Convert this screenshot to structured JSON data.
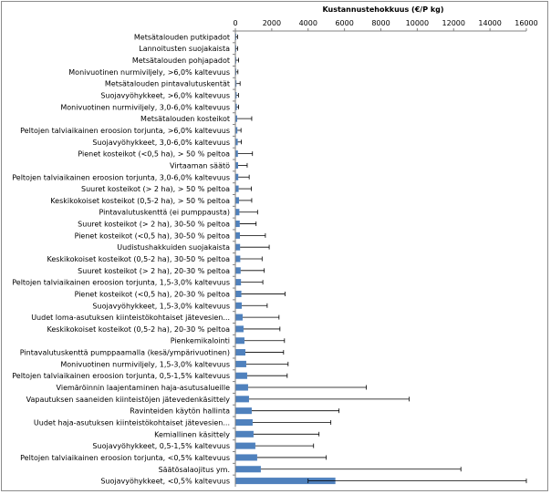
{
  "chart_data": {
    "type": "bar",
    "orientation": "horizontal",
    "title": "",
    "xlabel": "Kustannustehokkuus (€/P kg)",
    "ylabel": "",
    "xlim": [
      0,
      16000
    ],
    "xticks": [
      0,
      2000,
      4000,
      6000,
      8000,
      10000,
      12000,
      14000,
      16000
    ],
    "xtick_labels": [
      "0",
      "2000",
      "4000",
      "6000",
      "8000",
      "10000",
      "12000",
      "14000",
      "16000"
    ],
    "x_axis_position": "top",
    "grid": false,
    "legend": "none",
    "bar_color": "#4f81bd",
    "categories": [
      "Metsätalouden putkipadot",
      "Lannoitusten suojakaista",
      "Metsätalouden pohjapadot",
      "Monivuotinen nurmiviljely, >6,0% kaltevuus",
      "Metsätalouden pintavalutuskentät",
      "Suojavyöhykkeet, >6,0% kaltevuus",
      "Monivuotinen nurmiviljely, 3,0-6,0% kaltevuus",
      "Metsätalouden kosteikot",
      "Peltojen talviaikainen eroosion torjunta, >6,0% kaltevuus",
      "Suojavyöhykkeet, 3,0-6,0% kaltevuus",
      "Pienet kosteikot (<0,5 ha), > 50 % peltoa",
      "Virtaaman säätö",
      "Peltojen talviaikainen eroosion torjunta, 3,0-6,0% kaltevuus",
      "Suuret kosteikot (> 2 ha), > 50 % peltoa",
      "Keskikokoiset kosteikot (0,5-2 ha), > 50 % peltoa",
      "Pintavalutuskenttä (ei pumppausta)",
      "Suuret kosteikot (> 2 ha), 30-50 % peltoa",
      "Pienet kosteikot (<0,5 ha), 30-50 % peltoa",
      "Uudistushakkuiden suojakaista",
      "Keskikokoiset kosteikot (0,5-2 ha), 30-50 % peltoa",
      "Suuret kosteikot (> 2 ha), 20-30 % peltoa",
      "Peltojen talviaikainen eroosion torjunta, 1,5-3,0% kaltevuus",
      "Pienet kosteikot (<0,5 ha), 20-30 % peltoa",
      "Suojavyöhykkeet, 1,5-3,0% kaltevuus",
      "Uudet loma-asutuksen kiinteistökohtaiset jätevesien...",
      "Keskikokoiset kosteikot (0,5-2 ha), 20-30 % peltoa",
      "Pienkemikalointi",
      "Pintavalutuskenttä pumppaamalla (kesä/ympärivuotinen)",
      "Monivuotinen nurmiviljely, 1,5-3,0% kaltevuus",
      "Peltojen talviaikainen eroosion torjunta, 0,5-1,5% kaltevuus",
      "Viemäröinnin laajentaminen haja-asutusalueille",
      "Vapautuksen saaneiden kiinteistöjen jätevedenkäsittely",
      "Ravinteiden käytön hallinta",
      "Uudet haja-asutuksen kiinteistökohtaiset jätevesien...",
      "Kemiallinen käsittely",
      "Suojavyöhykkeet, 0,5-1,5% kaltevuus",
      "Peltojen talviaikainen eroosion torjunta, <0,5% kaltevuus",
      "Säätösalaojitus ym.",
      "Suojavyöhykkeet, <0,5% kaltevuus"
    ],
    "values": [
      20,
      25,
      30,
      40,
      60,
      70,
      80,
      100,
      110,
      130,
      140,
      150,
      160,
      180,
      200,
      220,
      240,
      250,
      260,
      270,
      290,
      310,
      330,
      350,
      400,
      450,
      500,
      550,
      600,
      650,
      700,
      750,
      900,
      950,
      1000,
      1100,
      1200,
      1400,
      5500
    ],
    "error_low": [
      0,
      0,
      0,
      0,
      0,
      0,
      0,
      0,
      0,
      0,
      0,
      0,
      0,
      0,
      0,
      0,
      0,
      0,
      0,
      0,
      0,
      0,
      0,
      0,
      0,
      0,
      0,
      0,
      0,
      0,
      0,
      0,
      0,
      0,
      0,
      0,
      0,
      0,
      1500
    ],
    "error_high": [
      100,
      100,
      150,
      100,
      200,
      100,
      100,
      800,
      200,
      200,
      800,
      500,
      600,
      700,
      700,
      1000,
      900,
      1400,
      1600,
      1200,
      1300,
      1200,
      2400,
      1400,
      2000,
      2000,
      2200,
      2100,
      2300,
      2200,
      6500,
      8800,
      4800,
      4300,
      3600,
      3200,
      3800,
      11000,
      13600
    ]
  }
}
